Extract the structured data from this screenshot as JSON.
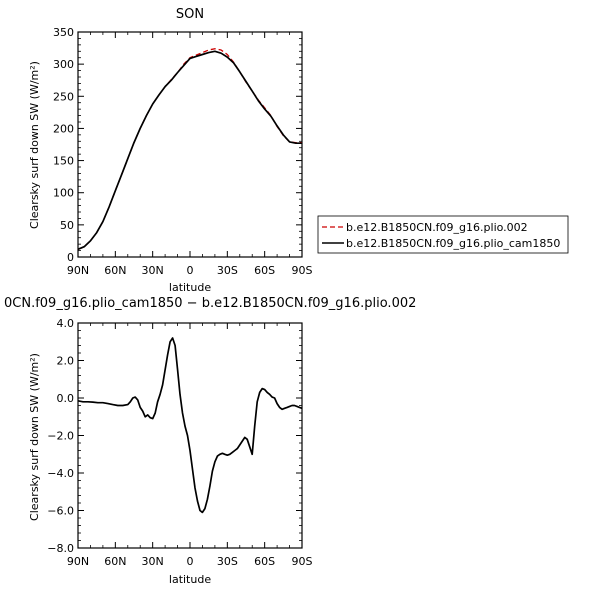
{
  "chart_data": [
    {
      "type": "line",
      "title": "SON",
      "xlabel": "latitude",
      "ylabel": "Clearsky surf down SW (W/m²)",
      "xlim": [
        90,
        -90
      ],
      "ylim": [
        0,
        350
      ],
      "x_ticks": [
        {
          "value": 90,
          "label": "90N"
        },
        {
          "value": 60,
          "label": "60N"
        },
        {
          "value": 30,
          "label": "30N"
        },
        {
          "value": 0,
          "label": "0"
        },
        {
          "value": -30,
          "label": "30S"
        },
        {
          "value": -60,
          "label": "60S"
        },
        {
          "value": -90,
          "label": "90S"
        }
      ],
      "y_ticks": [
        {
          "value": 0,
          "label": "0"
        },
        {
          "value": 50,
          "label": "50"
        },
        {
          "value": 100,
          "label": "100"
        },
        {
          "value": 150,
          "label": "150"
        },
        {
          "value": 200,
          "label": "200"
        },
        {
          "value": 250,
          "label": "250"
        },
        {
          "value": 300,
          "label": "300"
        },
        {
          "value": 350,
          "label": "350"
        }
      ],
      "legend_position": "right",
      "series": [
        {
          "name": "b.e12.B1850CN.f09_g16.plio.002",
          "color": "#cc0000",
          "style": "dashed",
          "x": [
            90,
            85,
            80,
            75,
            70,
            65,
            60,
            55,
            50,
            45,
            40,
            35,
            30,
            25,
            20,
            15,
            10,
            5,
            0,
            -5,
            -10,
            -15,
            -20,
            -25,
            -30,
            -35,
            -40,
            -45,
            -50,
            -55,
            -60,
            -65,
            -70,
            -75,
            -80,
            -85,
            -90
          ],
          "values": [
            12,
            16,
            25,
            38,
            55,
            78,
            103,
            128,
            153,
            178,
            200,
            220,
            238,
            252,
            265,
            276,
            287,
            300,
            310,
            314,
            318,
            322,
            324,
            322,
            315,
            303,
            288,
            272,
            258,
            244,
            232,
            220,
            203,
            189,
            179,
            178,
            178
          ]
        },
        {
          "name": "b.e12.B1850CN.f09_g16.plio_cam1850",
          "color": "#000000",
          "style": "solid",
          "x": [
            90,
            85,
            80,
            75,
            70,
            65,
            60,
            55,
            50,
            45,
            40,
            35,
            30,
            25,
            20,
            15,
            10,
            5,
            0,
            -5,
            -10,
            -15,
            -20,
            -25,
            -30,
            -35,
            -40,
            -45,
            -50,
            -55,
            -60,
            -65,
            -70,
            -75,
            -80,
            -85,
            -90
          ],
          "values": [
            12,
            16,
            25,
            38,
            55,
            78,
            103,
            128,
            153,
            178,
            200,
            220,
            238,
            252,
            265,
            275,
            287,
            298,
            309,
            312,
            315,
            318,
            320,
            317,
            311,
            302,
            288,
            273,
            258,
            243,
            230,
            219,
            204,
            190,
            179,
            177,
            177
          ]
        }
      ]
    },
    {
      "type": "line",
      "title": "0CN.f09_g16.plio_cam1850 − b.e12.B1850CN.f09_g16.plio.002",
      "xlabel": "latitude",
      "ylabel": "Clearsky surf down SW (W/m²)",
      "xlim": [
        90,
        -90
      ],
      "ylim": [
        -8,
        4
      ],
      "x_ticks": [
        {
          "value": 90,
          "label": "90N"
        },
        {
          "value": 60,
          "label": "60N"
        },
        {
          "value": 30,
          "label": "30N"
        },
        {
          "value": 0,
          "label": "0"
        },
        {
          "value": -30,
          "label": "30S"
        },
        {
          "value": -60,
          "label": "60S"
        },
        {
          "value": -90,
          "label": "90S"
        }
      ],
      "y_ticks": [
        {
          "value": -8,
          "label": "−8.0"
        },
        {
          "value": -6,
          "label": "−6.0"
        },
        {
          "value": -4,
          "label": "−4.0"
        },
        {
          "value": -2,
          "label": "−2.0"
        },
        {
          "value": 0,
          "label": "0.0"
        },
        {
          "value": 2,
          "label": "2.0"
        },
        {
          "value": 4,
          "label": "4.0"
        }
      ],
      "series": [
        {
          "color": "#000000",
          "style": "solid",
          "x": [
            90,
            86,
            82,
            78,
            74,
            70,
            66,
            62,
            58,
            54,
            50,
            48,
            46,
            44,
            42,
            40,
            38,
            36,
            34,
            32,
            30,
            28,
            26,
            24,
            22,
            20,
            18,
            16,
            14,
            12,
            10,
            8,
            6,
            4,
            2,
            0,
            -2,
            -4,
            -6,
            -8,
            -10,
            -12,
            -14,
            -16,
            -18,
            -20,
            -22,
            -24,
            -26,
            -28,
            -30,
            -32,
            -34,
            -36,
            -38,
            -40,
            -42,
            -44,
            -46,
            -48,
            -50,
            -52,
            -54,
            -56,
            -58,
            -60,
            -62,
            -64,
            -66,
            -68,
            -70,
            -72,
            -74,
            -76,
            -78,
            -80,
            -82,
            -84,
            -86,
            -88,
            -90
          ],
          "values": [
            -0.15,
            -0.2,
            -0.2,
            -0.22,
            -0.25,
            -0.25,
            -0.3,
            -0.35,
            -0.4,
            -0.4,
            -0.35,
            -0.2,
            0.0,
            0.05,
            -0.1,
            -0.5,
            -0.7,
            -1.0,
            -0.9,
            -1.05,
            -1.1,
            -0.8,
            -0.2,
            0.2,
            0.7,
            1.5,
            2.3,
            3.0,
            3.2,
            2.8,
            1.5,
            0.2,
            -0.8,
            -1.5,
            -2.0,
            -2.8,
            -3.8,
            -4.8,
            -5.5,
            -6.0,
            -6.1,
            -5.9,
            -5.4,
            -4.7,
            -3.9,
            -3.4,
            -3.1,
            -3.0,
            -2.95,
            -3.0,
            -3.05,
            -3.0,
            -2.9,
            -2.8,
            -2.7,
            -2.5,
            -2.3,
            -2.1,
            -2.2,
            -2.6,
            -3.0,
            -1.5,
            -0.2,
            0.3,
            0.5,
            0.45,
            0.3,
            0.2,
            0.05,
            0.0,
            -0.3,
            -0.5,
            -0.6,
            -0.55,
            -0.5,
            -0.45,
            -0.4,
            -0.4,
            -0.45,
            -0.5,
            -0.55
          ]
        }
      ]
    }
  ]
}
